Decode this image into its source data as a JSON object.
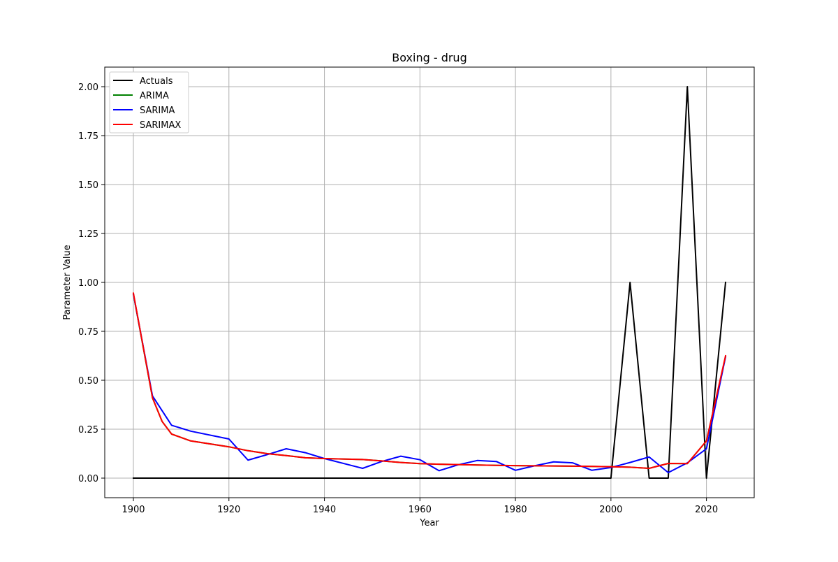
{
  "chart_data": {
    "type": "line",
    "title": "Boxing - drug",
    "xlabel": "Year",
    "ylabel": "Parameter Value",
    "xlim": [
      1894,
      2030
    ],
    "ylim": [
      -0.1,
      2.1
    ],
    "xticks": [
      1900,
      1920,
      1940,
      1960,
      1980,
      2000,
      2020
    ],
    "yticks": [
      0.0,
      0.25,
      0.5,
      0.75,
      1.0,
      1.25,
      1.5,
      1.75,
      2.0
    ],
    "xtick_labels": [
      "1900",
      "1920",
      "1940",
      "1960",
      "1980",
      "2000",
      "2020"
    ],
    "ytick_labels": [
      "0.00",
      "0.25",
      "0.50",
      "0.75",
      "1.00",
      "1.25",
      "1.50",
      "1.75",
      "2.00"
    ],
    "grid": true,
    "legend_position": "upper-left",
    "series": [
      {
        "name": "Actuals",
        "color": "#000000",
        "x": [
          1900,
          1904,
          1908,
          1912,
          1920,
          1924,
          1928,
          1932,
          1936,
          1948,
          1952,
          1956,
          1960,
          1964,
          1968,
          1972,
          1976,
          1980,
          1984,
          1988,
          1992,
          1996,
          2000,
          2004,
          2008,
          2012,
          2016,
          2020,
          2024
        ],
        "y": [
          0,
          0,
          0,
          0,
          0,
          0,
          0,
          0,
          0,
          0,
          0,
          0,
          0,
          0,
          0,
          0,
          0,
          0,
          0,
          0,
          0,
          0,
          0,
          1,
          0,
          0,
          2,
          0,
          1
        ]
      },
      {
        "name": "ARIMA",
        "color": "#008000",
        "x": [
          1900,
          1904,
          1906,
          1908,
          1912,
          1920,
          1924,
          1928,
          1932,
          1936,
          1940,
          1948,
          1952,
          1956,
          1960,
          1964,
          1968,
          1972,
          1976,
          1980,
          1984,
          1988,
          1992,
          1996,
          2000,
          2004,
          2008,
          2012,
          2016,
          2020,
          2024
        ],
        "y": [
          0.94,
          0.41,
          0.29,
          0.225,
          0.19,
          0.16,
          0.14,
          0.125,
          0.115,
          0.104,
          0.1,
          0.095,
          0.088,
          0.08,
          0.074,
          0.071,
          0.069,
          0.067,
          0.065,
          0.064,
          0.063,
          0.062,
          0.061,
          0.06,
          0.058,
          0.056,
          0.05,
          0.075,
          0.074,
          0.19,
          0.62
        ]
      },
      {
        "name": "SARIMA",
        "color": "#0000ff",
        "x": [
          1900,
          1904,
          1908,
          1912,
          1920,
          1924,
          1928,
          1932,
          1936,
          1940,
          1948,
          1952,
          1956,
          1960,
          1964,
          1968,
          1972,
          1976,
          1980,
          1984,
          1988,
          1992,
          1996,
          2000,
          2004,
          2008,
          2012,
          2016,
          2020,
          2024
        ],
        "y": [
          0.94,
          0.42,
          0.27,
          0.24,
          0.2,
          0.092,
          0.12,
          0.15,
          0.13,
          0.1,
          0.05,
          0.085,
          0.112,
          0.094,
          0.038,
          0.068,
          0.09,
          0.085,
          0.04,
          0.063,
          0.083,
          0.078,
          0.04,
          0.054,
          0.08,
          0.108,
          0.028,
          0.078,
          0.15,
          0.62
        ]
      },
      {
        "name": "SARIMAX",
        "color": "#ff0000",
        "x": [
          1900,
          1904,
          1906,
          1908,
          1912,
          1920,
          1924,
          1928,
          1932,
          1936,
          1940,
          1948,
          1952,
          1956,
          1960,
          1964,
          1968,
          1972,
          1976,
          1980,
          1984,
          1988,
          1992,
          1996,
          2000,
          2004,
          2008,
          2012,
          2016,
          2020,
          2024
        ],
        "y": [
          0.945,
          0.41,
          0.29,
          0.225,
          0.19,
          0.16,
          0.14,
          0.125,
          0.115,
          0.104,
          0.1,
          0.095,
          0.088,
          0.08,
          0.074,
          0.071,
          0.069,
          0.067,
          0.065,
          0.064,
          0.063,
          0.062,
          0.061,
          0.06,
          0.058,
          0.056,
          0.05,
          0.075,
          0.074,
          0.19,
          0.625
        ]
      }
    ]
  }
}
